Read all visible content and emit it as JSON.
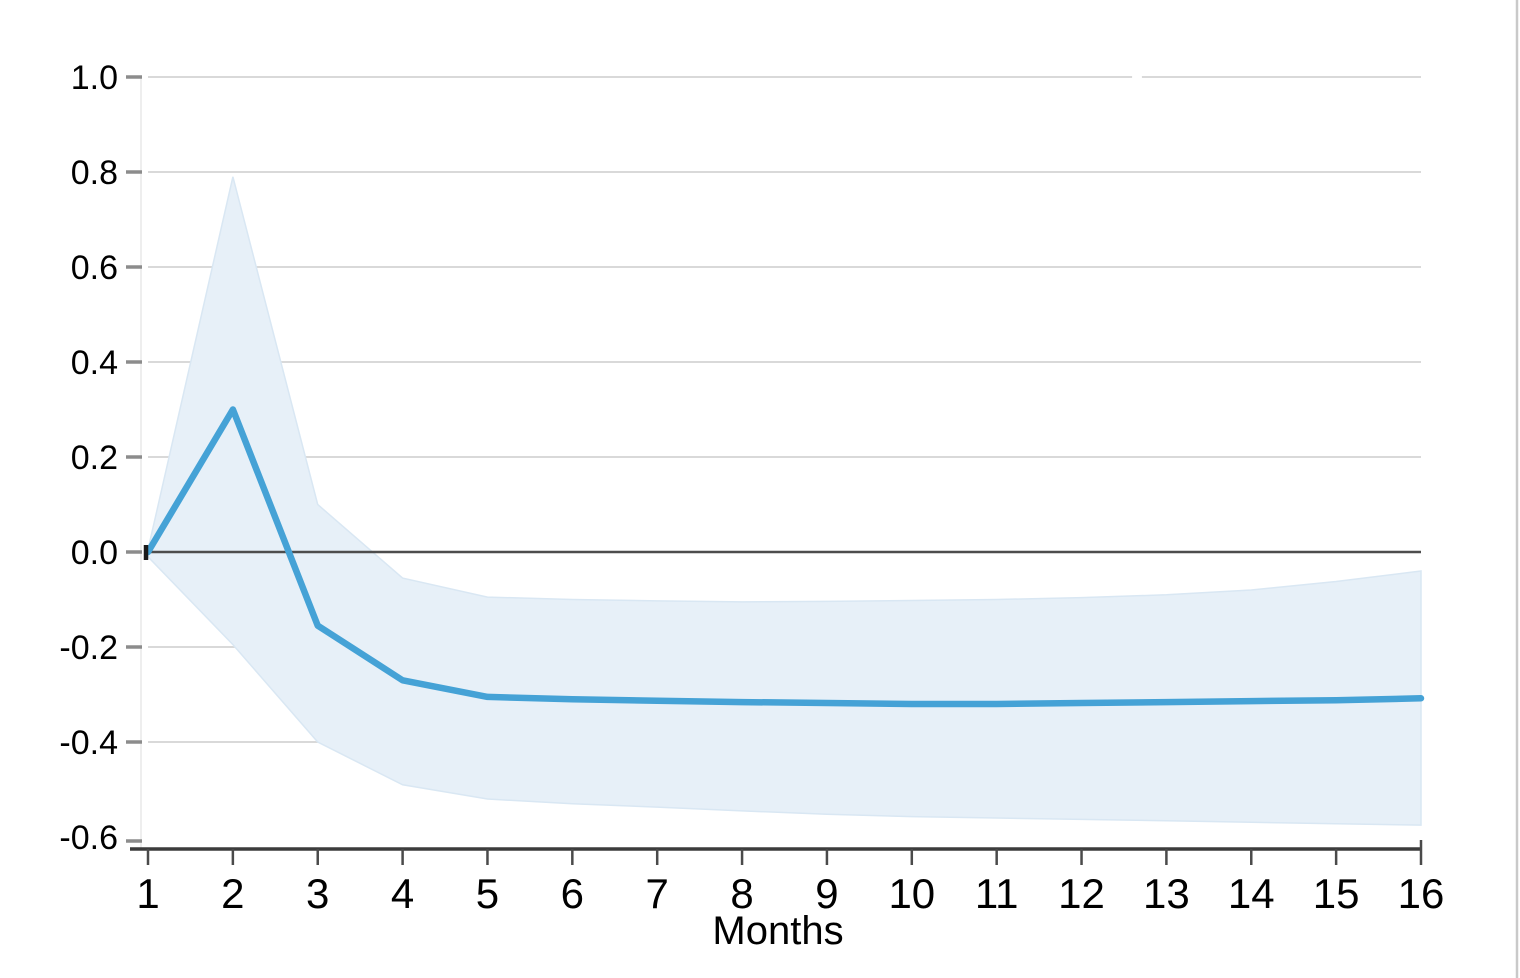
{
  "chart_data": {
    "type": "line",
    "title": "",
    "xlabel": "Months",
    "ylabel": "",
    "x": [
      1,
      2,
      3,
      4,
      5,
      6,
      7,
      8,
      9,
      10,
      11,
      12,
      13,
      14,
      15,
      16
    ],
    "series": [
      {
        "name": "impulse-response",
        "style": "thick-line",
        "values": [
          0.0,
          0.3,
          -0.155,
          -0.27,
          -0.305,
          -0.31,
          -0.313,
          -0.316,
          -0.318,
          -0.32,
          -0.32,
          -0.318,
          -0.316,
          -0.314,
          -0.312,
          -0.308
        ]
      },
      {
        "name": "confidence-band-upper",
        "style": "band-edge",
        "values": [
          0.005,
          0.79,
          0.1,
          -0.055,
          -0.095,
          -0.1,
          -0.103,
          -0.105,
          -0.104,
          -0.102,
          -0.1,
          -0.096,
          -0.09,
          -0.08,
          -0.062,
          -0.04
        ]
      },
      {
        "name": "confidence-band-lower",
        "style": "band-edge",
        "values": [
          -0.01,
          -0.195,
          -0.4,
          -0.49,
          -0.52,
          -0.53,
          -0.537,
          -0.545,
          -0.552,
          -0.557,
          -0.56,
          -0.563,
          -0.566,
          -0.569,
          -0.572,
          -0.575
        ]
      }
    ],
    "y_tick_labels": [
      "1.0",
      "0.8",
      "0.6",
      "0.4",
      "0.2",
      "0.0",
      "-0.2",
      "-0.4",
      "-0.6"
    ],
    "x_tick_labels": [
      "1",
      "2",
      "3",
      "4",
      "5",
      "6",
      "7",
      "8",
      "9",
      "10",
      "11",
      "12",
      "13",
      "14",
      "15",
      "16"
    ],
    "ylim": [
      -0.6,
      1.0
    ],
    "xlim": [
      1,
      16
    ],
    "grid": "horizontal",
    "zero_line": true,
    "legend": "none",
    "colors": {
      "line": "#45a2d6",
      "band_fill": "#e7f0f8",
      "band_edge": "#d9e7f3",
      "gridline": "#d9d9d9",
      "zero_line": "#4d4d4d",
      "axis_line": "#3c3c3c",
      "x_tick": "#4a4a4a",
      "y_tick_dash": "#8c8c8c",
      "plot_left_edge": "#e9e9e9",
      "right_border": "#c9c9c9",
      "origin_marker": "#1a1a1a",
      "text": "#000000"
    }
  }
}
